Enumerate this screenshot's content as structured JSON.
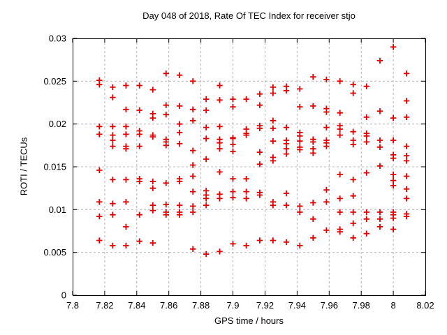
{
  "chart_data": {
    "type": "scatter",
    "title": "Day 048 of 2018, Rate Of TEC Index for receiver stjo",
    "xlabel": "GPS time / hours",
    "ylabel": "ROTI / TECUs",
    "xlim": [
      7.8,
      8.02
    ],
    "ylim": [
      0,
      0.03
    ],
    "xtick_values": [
      7.8,
      7.82,
      7.84,
      7.86,
      7.88,
      7.9,
      7.92,
      7.94,
      7.96,
      7.98,
      8,
      8.02
    ],
    "xtick_labels": [
      "7.8",
      "7.82",
      "7.84",
      "7.86",
      "7.88",
      "7.9",
      "7.92",
      "7.94",
      "7.96",
      "7.98",
      "8",
      "8.02"
    ],
    "ytick_values": [
      0,
      0.005,
      0.01,
      0.015,
      0.02,
      0.025,
      0.03
    ],
    "ytick_labels": [
      "0",
      "0.005",
      "0.01",
      "0.015",
      "0.02",
      "0.025",
      "0.03"
    ],
    "grid": true,
    "legend": "none",
    "marker": "plus",
    "marker_color": "#e00000",
    "epochs": [
      {
        "t": 7.8167,
        "roti": [
          0.0251,
          0.0246,
          0.0197,
          0.0188,
          0.0146,
          0.0109,
          0.0092,
          0.0064
        ]
      },
      {
        "t": 7.825,
        "roti": [
          0.0243,
          0.0231,
          0.0197,
          0.0187,
          0.0181,
          0.0174,
          0.0135,
          0.0107,
          0.0094,
          0.0058
        ]
      },
      {
        "t": 7.8333,
        "roti": [
          0.0245,
          0.0217,
          0.0197,
          0.0188,
          0.0174,
          0.0171,
          0.0135,
          0.0109,
          0.008,
          0.0058
        ]
      },
      {
        "t": 7.8417,
        "roti": [
          0.0245,
          0.0216,
          0.0192,
          0.0188,
          0.0174,
          0.0136,
          0.0133,
          0.0094,
          0.0063
        ]
      },
      {
        "t": 7.85,
        "roti": [
          0.024,
          0.0212,
          0.0207,
          0.0187,
          0.0185,
          0.0133,
          0.0125,
          0.0105,
          0.0099,
          0.0061
        ]
      },
      {
        "t": 7.8583,
        "roti": [
          0.0259,
          0.0222,
          0.0211,
          0.0182,
          0.0179,
          0.0175,
          0.0131,
          0.0106,
          0.0097,
          0.0094
        ]
      },
      {
        "t": 7.8667,
        "roti": [
          0.0257,
          0.0221,
          0.02,
          0.019,
          0.0177,
          0.0136,
          0.0133,
          0.0105,
          0.0097,
          0.0094
        ]
      },
      {
        "t": 7.875,
        "roti": [
          0.025,
          0.0217,
          0.0204,
          0.0169,
          0.0152,
          0.0139,
          0.0121,
          0.0104,
          0.0097,
          0.0054
        ]
      },
      {
        "t": 7.8833,
        "roti": [
          0.0229,
          0.0216,
          0.0196,
          0.0183,
          0.0159,
          0.0122,
          0.0117,
          0.0113,
          0.0105,
          0.0048
        ]
      },
      {
        "t": 7.8917,
        "roti": [
          0.0245,
          0.0228,
          0.0197,
          0.0182,
          0.0178,
          0.0171,
          0.0144,
          0.0118,
          0.0113,
          0.0051
        ]
      },
      {
        "t": 7.9,
        "roti": [
          0.0229,
          0.022,
          0.0184,
          0.0183,
          0.0176,
          0.0168,
          0.0136,
          0.0121,
          0.0114,
          0.006
        ]
      },
      {
        "t": 7.9083,
        "roti": [
          0.0229,
          0.0194,
          0.0189,
          0.0187,
          0.0136,
          0.0121,
          0.0113,
          0.0058
        ]
      },
      {
        "t": 7.9167,
        "roti": [
          0.0235,
          0.0222,
          0.0198,
          0.0195,
          0.0167,
          0.0153,
          0.012,
          0.0117,
          0.0064
        ]
      },
      {
        "t": 7.925,
        "roti": [
          0.0243,
          0.0236,
          0.0204,
          0.0195,
          0.018,
          0.0161,
          0.0157,
          0.0109,
          0.0105,
          0.0064
        ]
      },
      {
        "t": 7.9333,
        "roti": [
          0.0244,
          0.0239,
          0.0196,
          0.0181,
          0.0177,
          0.0171,
          0.0165,
          0.0119,
          0.0105,
          0.0062
        ]
      },
      {
        "t": 7.9417,
        "roti": [
          0.0241,
          0.022,
          0.019,
          0.0186,
          0.018,
          0.0173,
          0.017,
          0.0104,
          0.0097,
          0.0058
        ]
      },
      {
        "t": 7.95,
        "roti": [
          0.0255,
          0.0221,
          0.0182,
          0.0179,
          0.0171,
          0.0166,
          0.0108,
          0.0089,
          0.0067
        ]
      },
      {
        "t": 7.9583,
        "roti": [
          0.0252,
          0.0218,
          0.0214,
          0.0196,
          0.0181,
          0.0178,
          0.0174,
          0.0123,
          0.0109,
          0.0076
        ]
      },
      {
        "t": 7.9667,
        "roti": [
          0.025,
          0.0213,
          0.0198,
          0.0194,
          0.0187,
          0.0141,
          0.0113,
          0.0097,
          0.0077,
          0.0074
        ]
      },
      {
        "t": 7.975,
        "roti": [
          0.0246,
          0.0236,
          0.0191,
          0.0181,
          0.0176,
          0.0135,
          0.0116,
          0.0097,
          0.0084,
          0.0067
        ]
      },
      {
        "t": 7.9833,
        "roti": [
          0.0244,
          0.0208,
          0.0189,
          0.0186,
          0.0179,
          0.0143,
          0.0097,
          0.0089,
          0.0072
        ]
      },
      {
        "t": 7.9917,
        "roti": [
          0.0274,
          0.0215,
          0.0181,
          0.0173,
          0.0151,
          0.0097,
          0.0089,
          0.008
        ]
      },
      {
        "t": 8.0,
        "roti": [
          0.029,
          0.0207,
          0.0181,
          0.0164,
          0.016,
          0.0141,
          0.0134,
          0.0128,
          0.0097,
          0.0094,
          0.009,
          0.0077
        ]
      },
      {
        "t": 8.0083,
        "roti": [
          0.0259,
          0.0227,
          0.0208,
          0.0174,
          0.0163,
          0.0157,
          0.0139,
          0.0124,
          0.0113,
          0.0095,
          0.0092
        ]
      }
    ]
  }
}
